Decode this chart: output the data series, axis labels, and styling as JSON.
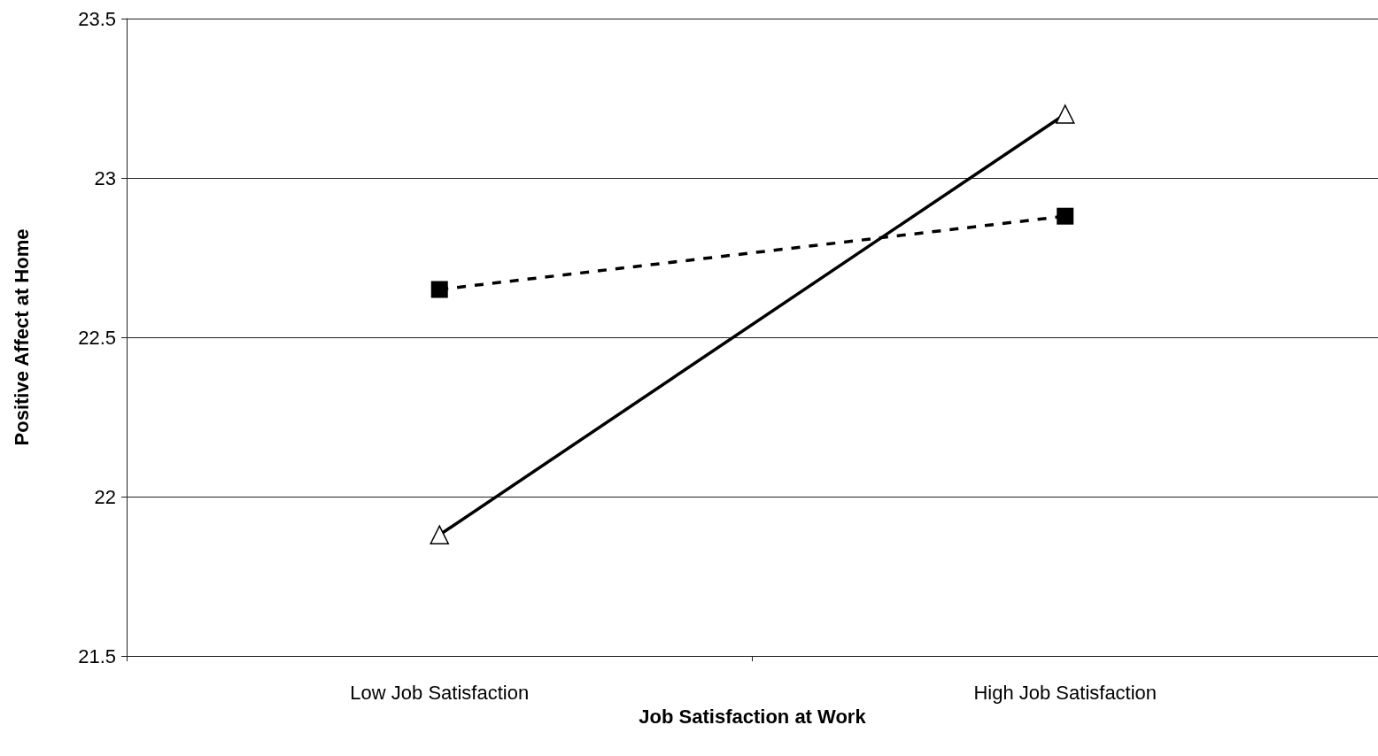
{
  "chart_data": {
    "type": "line",
    "xlabel": "Job Satisfaction at Work",
    "ylabel": "Positive Affect at Home",
    "categories": [
      "Low Job Satisfaction",
      "High Job Satisfaction"
    ],
    "series": [
      {
        "color": "#000000",
        "values": [
          21.88,
          23.2
        ],
        "marker": "triangle",
        "line_style": "solid"
      },
      {
        "color": "#000000",
        "values": [
          22.65,
          22.88
        ],
        "marker": "square",
        "line_style": "dashed"
      }
    ],
    "ylim": [
      21.5,
      23.5
    ],
    "yticks": [
      21.5,
      22,
      22.5,
      23,
      23.5
    ],
    "grid": "y"
  }
}
